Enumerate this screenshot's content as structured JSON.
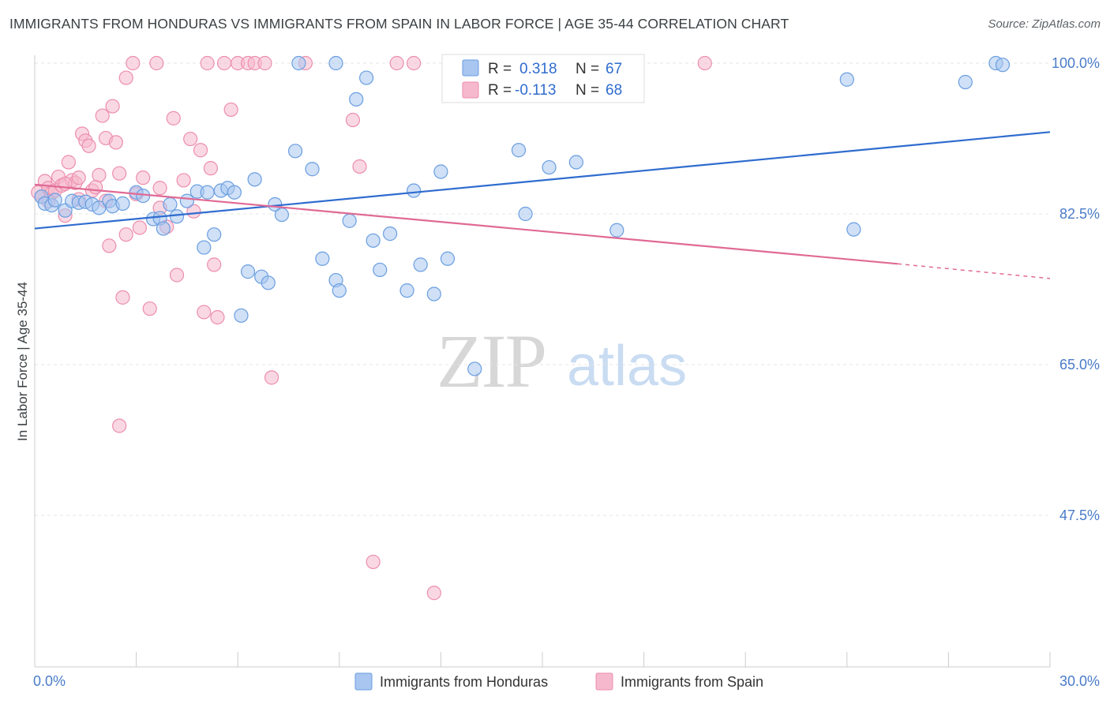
{
  "title": "IMMIGRANTS FROM HONDURAS VS IMMIGRANTS FROM SPAIN IN LABOR FORCE | AGE 35-44 CORRELATION CHART",
  "source": "Source: ZipAtlas.com",
  "watermark": {
    "zip": "ZIP",
    "atlas": "atlas"
  },
  "colors": {
    "honduras_fill": "#a8c6f0",
    "honduras_stroke": "#6a9ee0",
    "honduras_line": "#2f6ccf",
    "spain_fill": "#f6b8cc",
    "spain_stroke": "#ec8eae",
    "spain_line": "#e06a95",
    "tick_label": "#4a7bc8",
    "grid": "#e4e4e4"
  },
  "legend": {
    "rows": [
      {
        "r_label": "R =",
        "r_value": "0.318",
        "n_label": "N =",
        "n_value": "67"
      },
      {
        "r_label": "R =",
        "r_value": "-0.113",
        "n_label": "N =",
        "n_value": "68"
      }
    ]
  },
  "chart_data": {
    "type": "scatter",
    "title": "IMMIGRANTS FROM HONDURAS VS IMMIGRANTS FROM SPAIN IN LABOR FORCE | AGE 35-44 CORRELATION CHART",
    "xlabel": "",
    "ylabel": "In Labor Force | Age 35-44",
    "xlim": [
      0,
      30
    ],
    "ylim": [
      31,
      102
    ],
    "x_tick_labels": [
      "0.0%",
      "30.0%"
    ],
    "y_ticks": [
      100,
      82.5,
      65,
      47.5
    ],
    "y_tick_labels": [
      "100.0%",
      "82.5%",
      "65.0%",
      "47.5%"
    ],
    "grid": true,
    "legend_position": "top-center",
    "series": [
      {
        "name": "Immigrants from Honduras",
        "r": 0.318,
        "n": 67,
        "trend": {
          "x": [
            0,
            30
          ],
          "y": [
            80.8,
            92.0
          ]
        },
        "points": [
          [
            0.2,
            84.5
          ],
          [
            0.3,
            83.7
          ],
          [
            0.5,
            83.5
          ],
          [
            0.6,
            84.1
          ],
          [
            0.9,
            82.9
          ],
          [
            1.1,
            84.0
          ],
          [
            1.3,
            83.8
          ],
          [
            1.5,
            83.9
          ],
          [
            1.7,
            83.6
          ],
          [
            1.9,
            83.2
          ],
          [
            2.2,
            84.0
          ],
          [
            2.3,
            83.4
          ],
          [
            2.6,
            83.7
          ],
          [
            3.0,
            85.0
          ],
          [
            3.2,
            84.6
          ],
          [
            3.5,
            81.9
          ],
          [
            3.7,
            82.0
          ],
          [
            3.8,
            80.8
          ],
          [
            4.0,
            83.6
          ],
          [
            4.2,
            82.2
          ],
          [
            4.5,
            84.0
          ],
          [
            4.8,
            85.1
          ],
          [
            5.0,
            78.6
          ],
          [
            5.1,
            85.0
          ],
          [
            5.3,
            80.1
          ],
          [
            5.5,
            85.2
          ],
          [
            5.7,
            85.5
          ],
          [
            5.9,
            85.0
          ],
          [
            6.1,
            70.7
          ],
          [
            6.3,
            75.8
          ],
          [
            6.5,
            86.5
          ],
          [
            6.7,
            75.2
          ],
          [
            6.9,
            74.5
          ],
          [
            7.1,
            83.6
          ],
          [
            7.3,
            82.4
          ],
          [
            7.7,
            89.8
          ],
          [
            7.8,
            100.0
          ],
          [
            8.2,
            87.7
          ],
          [
            8.5,
            77.3
          ],
          [
            8.9,
            100.0
          ],
          [
            8.9,
            74.8
          ],
          [
            9.0,
            73.6
          ],
          [
            9.3,
            81.7
          ],
          [
            9.5,
            95.8
          ],
          [
            9.8,
            98.3
          ],
          [
            10.0,
            79.4
          ],
          [
            10.2,
            76.0
          ],
          [
            10.5,
            80.2
          ],
          [
            11.0,
            73.6
          ],
          [
            11.2,
            85.2
          ],
          [
            11.4,
            76.6
          ],
          [
            11.8,
            73.2
          ],
          [
            12.0,
            87.4
          ],
          [
            12.2,
            77.3
          ],
          [
            13.0,
            64.5
          ],
          [
            13.3,
            100.0
          ],
          [
            13.4,
            98.0
          ],
          [
            14.3,
            89.9
          ],
          [
            14.5,
            82.5
          ],
          [
            15.2,
            87.9
          ],
          [
            16.0,
            88.5
          ],
          [
            17.2,
            80.6
          ],
          [
            24.0,
            98.1
          ],
          [
            24.2,
            80.7
          ],
          [
            27.5,
            97.8
          ],
          [
            28.4,
            100.0
          ],
          [
            28.6,
            99.8
          ]
        ]
      },
      {
        "name": "Immigrants from Spain",
        "r": -0.113,
        "n": 68,
        "trend": {
          "x": [
            0,
            25.5
          ],
          "y": [
            85.9,
            76.7
          ]
        },
        "trend_dashed": {
          "x": [
            25.5,
            30
          ],
          "y": [
            76.7,
            75.0
          ]
        },
        "points": [
          [
            0.1,
            85.0
          ],
          [
            0.2,
            84.5
          ],
          [
            0.3,
            86.3
          ],
          [
            0.4,
            85.5
          ],
          [
            0.5,
            84.9
          ],
          [
            0.6,
            85.2
          ],
          [
            0.7,
            86.8
          ],
          [
            0.8,
            85.8
          ],
          [
            0.9,
            82.3
          ],
          [
            1.0,
            88.5
          ],
          [
            1.1,
            86.4
          ],
          [
            1.2,
            86.1
          ],
          [
            1.3,
            84.2
          ],
          [
            1.4,
            91.8
          ],
          [
            1.5,
            91.0
          ],
          [
            1.6,
            90.4
          ],
          [
            1.7,
            85.2
          ],
          [
            1.9,
            87.0
          ],
          [
            2.0,
            93.9
          ],
          [
            2.1,
            91.3
          ],
          [
            2.2,
            78.8
          ],
          [
            2.3,
            95.0
          ],
          [
            2.4,
            90.8
          ],
          [
            2.5,
            87.2
          ],
          [
            2.6,
            72.8
          ],
          [
            2.7,
            98.3
          ],
          [
            2.7,
            80.1
          ],
          [
            2.9,
            100.0
          ],
          [
            3.1,
            80.9
          ],
          [
            3.2,
            86.7
          ],
          [
            3.4,
            71.5
          ],
          [
            3.6,
            100.0
          ],
          [
            3.7,
            85.5
          ],
          [
            3.9,
            81.0
          ],
          [
            4.1,
            93.6
          ],
          [
            4.2,
            75.4
          ],
          [
            4.6,
            91.2
          ],
          [
            4.7,
            82.8
          ],
          [
            4.9,
            89.9
          ],
          [
            5.0,
            71.1
          ],
          [
            5.1,
            100.0
          ],
          [
            5.3,
            76.6
          ],
          [
            5.4,
            70.5
          ],
          [
            5.6,
            100.0
          ],
          [
            5.8,
            94.6
          ],
          [
            6.0,
            100.0
          ],
          [
            6.3,
            100.0
          ],
          [
            6.5,
            100.0
          ],
          [
            6.8,
            100.0
          ],
          [
            7.0,
            63.5
          ],
          [
            8.0,
            100.0
          ],
          [
            9.4,
            93.4
          ],
          [
            9.6,
            88.0
          ],
          [
            10.0,
            42.1
          ],
          [
            10.7,
            100.0
          ],
          [
            11.2,
            100.0
          ],
          [
            11.8,
            38.5
          ],
          [
            19.8,
            100.0
          ],
          [
            2.5,
            57.9
          ],
          [
            3.0,
            84.8
          ],
          [
            1.8,
            85.6
          ],
          [
            0.4,
            84.0
          ],
          [
            4.4,
            86.4
          ],
          [
            5.2,
            87.8
          ],
          [
            1.3,
            86.7
          ],
          [
            3.7,
            83.2
          ],
          [
            2.1,
            84.0
          ],
          [
            0.9,
            86.0
          ]
        ]
      }
    ]
  },
  "bottom_legend": [
    "Immigrants from Honduras",
    "Immigrants from Spain"
  ]
}
